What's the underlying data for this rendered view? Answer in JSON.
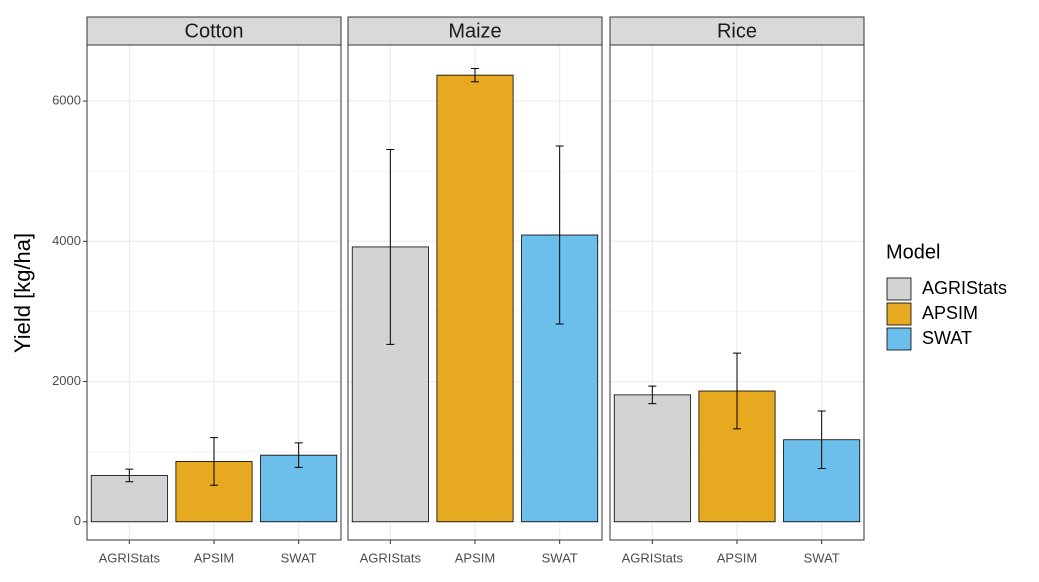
{
  "chart_data": {
    "type": "bar",
    "y_label": "Yield [kg/ha]",
    "legend_title": "Model",
    "legend_position": "right",
    "facets": [
      "Cotton",
      "Maize",
      "Rice"
    ],
    "series": [
      {
        "name": "AGRIStats",
        "color": "#d3d3d3",
        "values": [
          660,
          3920,
          1810
        ],
        "errors": [
          90,
          1390,
          125
        ]
      },
      {
        "name": "APSIM",
        "color": "#e6a91f",
        "values": [
          860,
          6370,
          1865
        ],
        "errors": [
          340,
          95,
          540
        ]
      },
      {
        "name": "SWAT",
        "color": "#6cbfea",
        "values": [
          950,
          4090,
          1170
        ],
        "errors": [
          175,
          1270,
          410
        ]
      }
    ],
    "ylim": [
      -260,
      6800
    ],
    "yticks": [
      0,
      2000,
      4000,
      6000
    ],
    "minor_yticks": [
      1000,
      3000,
      5000
    ],
    "grid": true
  }
}
